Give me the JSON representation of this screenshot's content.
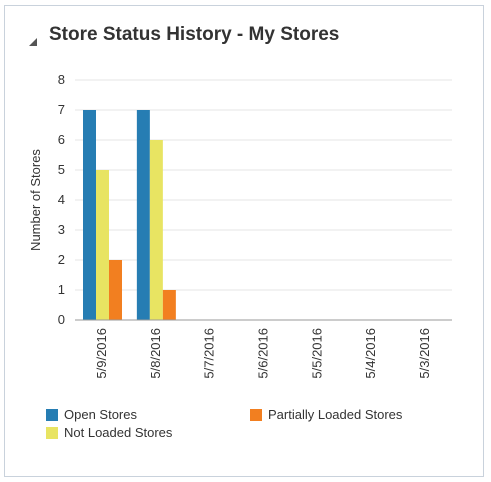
{
  "panel": {
    "title": "Store Status History - My Stores",
    "collapse_icon": "collapse-triangle-icon"
  },
  "chart_data": {
    "type": "bar",
    "title": "",
    "ylabel": "Number of Stores",
    "xlabel": "",
    "ylim": [
      0,
      8
    ],
    "yticks": [
      "0",
      "1",
      "2",
      "3",
      "4",
      "5",
      "6",
      "7",
      "8"
    ],
    "grid": true,
    "legend_position": "bottom",
    "categories": [
      "5/9/2016",
      "5/8/2016",
      "5/7/2016",
      "5/6/2016",
      "5/5/2016",
      "5/4/2016",
      "5/3/2016"
    ],
    "series": [
      {
        "name": "Open Stores",
        "color": "#267db3",
        "values": [
          7,
          7,
          0,
          0,
          0,
          0,
          0
        ]
      },
      {
        "name": "Not Loaded Stores",
        "color": "#e8e462",
        "values": [
          5,
          6,
          0,
          0,
          0,
          0,
          0
        ]
      },
      {
        "name": "Partially Loaded Stores",
        "color": "#f27f20",
        "values": [
          2,
          1,
          0,
          0,
          0,
          0,
          0
        ]
      }
    ]
  },
  "legend": {
    "items": [
      {
        "label": "Open Stores",
        "color": "#267db3"
      },
      {
        "label": "Partially Loaded Stores",
        "color": "#f27f20"
      },
      {
        "label": "Not Loaded Stores",
        "color": "#e8e462"
      }
    ]
  }
}
